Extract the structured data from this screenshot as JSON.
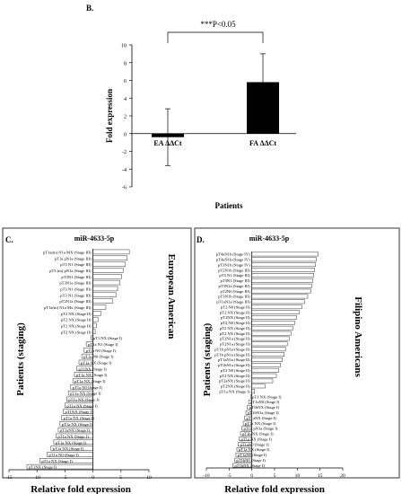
{
  "panels": {
    "B": "B.",
    "C": "C.",
    "D": "D."
  },
  "chart_data": [
    {
      "id": "B",
      "type": "bar",
      "title": "",
      "ylabel": "Fold expression",
      "xlabel": "Patients",
      "ylim": [
        -6,
        10
      ],
      "yticks": [
        10,
        8,
        6,
        4,
        2,
        0,
        -2,
        -4,
        -6
      ],
      "categories": [
        "EA ΔΔCt",
        "FA ΔΔCt"
      ],
      "values": [
        -0.4,
        5.8
      ],
      "error": [
        3.2,
        3.2
      ],
      "significance": "***P<0.05",
      "grid": false,
      "legend": "none"
    },
    {
      "id": "C",
      "type": "bar",
      "orientation": "horizontal",
      "title": "miR-4633-5p",
      "xlabel": "Relative fold expression",
      "ylabel": "Patients (staging)",
      "side_label": "European American",
      "xlim": [
        -15,
        10
      ],
      "xticks": [
        -15,
        -10,
        -5,
        0,
        5,
        10
      ],
      "categories": [
        "pT1a(m) N1a MX (Stage III)",
        "pT1a pN1a (Stage III)",
        "pT3 N1 (Stage III)",
        "pT3 (m) pN1a (Stage III)",
        "pT3N1 (Stage III)",
        "pT3N1a (Stage III)",
        "pT3 N1 (Stage III)",
        "pT3 N1 (Stage III)",
        "pT2N1a (Stage III)",
        "pT1a(m) N1a Mx (Stage III)",
        "pT2 NX (Stage II)",
        "pT2 NX (Stage II)",
        "pT2 NX (Stage II)",
        "pT2 NX (Stage II)",
        "pT1 NX (Stage I)",
        "pT1a N1 (Stage I)",
        "pT1a N0 (Stage I)",
        "pT1a N0 (Stage I)",
        "pT1a NX (Stage I)",
        "pT1NX (Stage I)",
        "pT1a NX (Stage I)",
        "pT1a NX (Stage I)",
        "pT1a N0 (Stage I)",
        "pT1a NX (Stage I)",
        "pT1a NX (Stage I)",
        "pT1a NX (Stage I)",
        "pT1NX (Stage I)",
        "pT1a NX (Stage I)",
        "pT1a NX (Stage I)",
        "pT1aNX (Stage I)",
        "pT1a NX (Stage I)",
        "pT1a NX (Stage I)",
        "pT1a NX (Stage I)",
        "pT1a N0 (Stage I)",
        "pT1a NX (Stage I)",
        "pT1NX (Stage I)"
      ],
      "values": [
        6.5,
        6.1,
        5.8,
        5.4,
        5.1,
        4.8,
        4.4,
        4.1,
        3.5,
        2.3,
        1.4,
        0.9,
        0.6,
        0.4,
        -0.3,
        -1.2,
        -1.6,
        -2.0,
        -2.5,
        -2.9,
        -3.3,
        -3.6,
        -4.0,
        -4.4,
        -4.7,
        -5.0,
        -5.3,
        -5.6,
        -5.9,
        -6.2,
        -6.6,
        -7.0,
        -7.5,
        -8.2,
        -9.5,
        -11.8
      ],
      "grid": false,
      "legend": "none"
    },
    {
      "id": "D",
      "type": "bar",
      "orientation": "horizontal",
      "title": "miR-4633-5p",
      "xlabel": "Relative fold expression",
      "ylabel": "Patients (staging)",
      "side_label": "Filipino Americans",
      "xlim": [
        -10,
        20
      ],
      "xticks": [
        -10,
        -5,
        0,
        5,
        10,
        15,
        20
      ],
      "categories": [
        "pT4aN1b (Stage IV)",
        "pT4aN1b (Stage IV)",
        "pT3N1b (Stage IV)",
        "pT2N1b (Stage III)",
        "pT3 N1 (Stage III)",
        "pT3N1 (Stage III)",
        "pT3N1a (Stage III)",
        "pT2N0 (Stage III)",
        "pT3N1b (Stage III)",
        "pT1aN1a (Stage III)",
        "pT2 N0 (Stage II)",
        "pT2 NX (Stage II)",
        "pT2NX (Stage II)",
        "pT2 N0 (Stage II)",
        "pT2 NX (Stage II)",
        "pT2 NX (Stage II)",
        "pT2N1a (Stage II)",
        "pT2N1a (Stage II)",
        "pT1b pN1a (Stage II)",
        "pT1b pN1a (Stage II)",
        "pT1aN1a (Stage II)",
        "pT1bN1a (Stage II)",
        "pT2 N0 (Stage II)",
        "pT2 NX (Stage II)",
        "pT2aNX (Stage II)",
        "pT2NX (Stage II)",
        "pT1a NX (Stage I)",
        "pT1 NX (Stage I)",
        "pT1aN0 (Stage I)",
        "pT1bNX (Stage I)",
        "pT1bN1a (Stage I)",
        "pT1aNX (Stage I)",
        "pT1a NX (Stage I)",
        "pT1b pN1a (Stage I)",
        "pT1b NX (Stage I)",
        "pT1a NX (Stage I)",
        "pT1aN0 (Stage I)",
        "pT1a NX (Stage I)",
        "pT1aN0 (Stage I)",
        "pT1bN0 (Stage I)",
        "pT1bNX (Stage I)"
      ],
      "values": [
        14.6,
        14.2,
        14.0,
        13.8,
        13.6,
        13.4,
        13.2,
        13.0,
        12.3,
        11.6,
        11.0,
        10.4,
        9.8,
        9.4,
        9.0,
        8.6,
        8.2,
        7.8,
        7.4,
        7.1,
        6.7,
        6.3,
        5.9,
        5.4,
        4.6,
        2.9,
        0.6,
        -0.3,
        -0.7,
        -1.0,
        -1.3,
        -1.6,
        -1.9,
        -2.2,
        -2.5,
        -2.8,
        -3.0,
        -3.3,
        -3.5,
        -3.8,
        -4.2
      ],
      "grid": false,
      "legend": "none"
    }
  ],
  "colors": {
    "bar_dark": "#000000",
    "bar_light": "#ffffff",
    "axis": "#000000",
    "text": "#000000",
    "stroke": "#333333"
  }
}
